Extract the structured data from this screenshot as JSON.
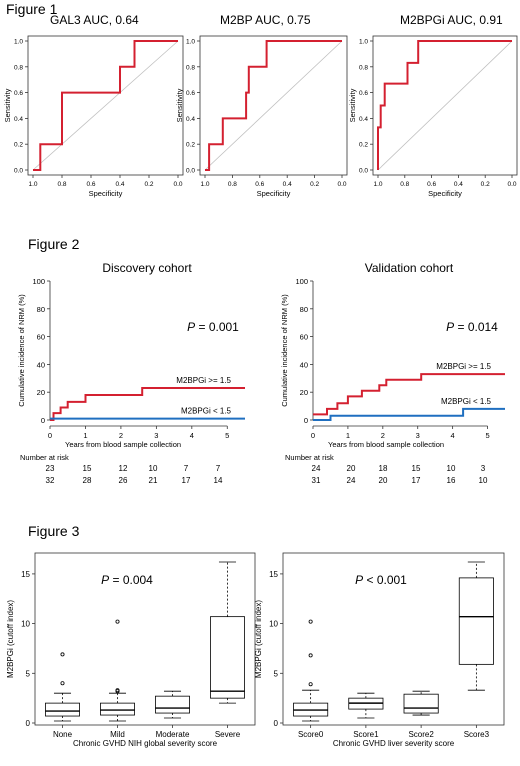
{
  "figures": [
    {
      "label": "Figure 1"
    },
    {
      "label": "Figure 2"
    },
    {
      "label": "Figure 3"
    }
  ],
  "colors": {
    "roc_line": "#d42030",
    "high_group": "#d42030",
    "low_group": "#1f6fc0",
    "reference_line": "#c0c0c0",
    "axis": "#333333"
  },
  "chart_data": [
    {
      "type": "line",
      "title": "GAL3  AUC, 0.64",
      "xlabel": "Specificity",
      "ylabel": "Sensitivity",
      "xlim": [
        1.0,
        0.0
      ],
      "ylim": [
        0.0,
        1.0
      ],
      "x_reversed": true,
      "xticks": [
        "1.0",
        "0.8",
        "0.6",
        "0.4",
        "0.2",
        "0.0"
      ],
      "yticks": [
        "0.0",
        "0.2",
        "0.4",
        "0.6",
        "0.8",
        "1.0"
      ],
      "diagonal_reference": true,
      "series": [
        {
          "x": [
            1.0,
            0.95,
            0.95,
            0.8,
            0.8,
            0.4,
            0.4,
            0.3,
            0.3,
            0.0
          ],
          "y": [
            0.0,
            0.0,
            0.2,
            0.2,
            0.6,
            0.6,
            0.8,
            0.8,
            1.0,
            1.0
          ]
        }
      ]
    },
    {
      "type": "line",
      "title": "M2BP  AUC, 0.75",
      "xlabel": "Specificity",
      "ylabel": "Sensitivity",
      "xlim": [
        1.0,
        0.0
      ],
      "ylim": [
        0.0,
        1.0
      ],
      "x_reversed": true,
      "xticks": [
        "1.0",
        "0.8",
        "0.6",
        "0.4",
        "0.2",
        "0.0"
      ],
      "yticks": [
        "0.0",
        "0.2",
        "0.4",
        "0.6",
        "0.8",
        "1.0"
      ],
      "diagonal_reference": true,
      "series": [
        {
          "x": [
            1.0,
            0.97,
            0.97,
            0.87,
            0.87,
            0.7,
            0.7,
            0.68,
            0.68,
            0.62,
            0.62,
            0.55,
            0.55,
            0.0
          ],
          "y": [
            0.0,
            0.0,
            0.2,
            0.2,
            0.4,
            0.4,
            0.6,
            0.6,
            0.8,
            0.8,
            0.8,
            0.8,
            1.0,
            1.0
          ]
        }
      ]
    },
    {
      "type": "line",
      "title": "M2BPGi  AUC, 0.91",
      "xlabel": "Specificity",
      "ylabel": "Sensitivity",
      "xlim": [
        1.0,
        0.0
      ],
      "ylim": [
        0.0,
        1.0
      ],
      "x_reversed": true,
      "xticks": [
        "1.0",
        "0.8",
        "0.6",
        "0.4",
        "0.2",
        "0.0"
      ],
      "yticks": [
        "0.0",
        "0.2",
        "0.4",
        "0.6",
        "0.8",
        "1.0"
      ],
      "diagonal_reference": true,
      "series": [
        {
          "x": [
            1.0,
            1.0,
            0.98,
            0.98,
            0.95,
            0.95,
            0.92,
            0.92,
            0.85,
            0.85,
            0.78,
            0.78,
            0.7,
            0.7,
            0.0
          ],
          "y": [
            0.0,
            0.33,
            0.33,
            0.5,
            0.5,
            0.67,
            0.67,
            0.67,
            0.67,
            0.67,
            0.67,
            0.83,
            0.83,
            1.0,
            1.0
          ]
        }
      ]
    },
    {
      "type": "line",
      "title": "Discovery cohort",
      "xlabel": "Years from blood sample collection",
      "ylabel": "Cumulative incidence of NRM (%)",
      "xlim": [
        0,
        5.5
      ],
      "ylim": [
        0,
        100
      ],
      "xticks": [
        "0",
        "1",
        "2",
        "3",
        "4",
        "5"
      ],
      "yticks": [
        "0",
        "20",
        "40",
        "60",
        "80",
        "100"
      ],
      "p_value_label": "P",
      "p_value_text": " = 0.001",
      "series": [
        {
          "name": "M2BPGi  >= 1.5",
          "color_key": "high_group",
          "x": [
            0,
            0.1,
            0.1,
            0.3,
            0.3,
            0.5,
            0.5,
            0.8,
            0.8,
            1.0,
            1.0,
            2.6,
            2.6,
            5.5
          ],
          "y": [
            0,
            0,
            5,
            5,
            9,
            9,
            13,
            13,
            13,
            13,
            18,
            18,
            23,
            23
          ]
        },
        {
          "name": "M2BPGi  < 1.5",
          "color_key": "low_group",
          "x": [
            0,
            5.5
          ],
          "y": [
            1,
            1
          ]
        }
      ],
      "risk_table": {
        "title": "Number  at risk",
        "rows": [
          [
            "23",
            "15",
            "12",
            "10",
            "7",
            "7"
          ],
          [
            "32",
            "28",
            "26",
            "21",
            "17",
            "14"
          ]
        ]
      }
    },
    {
      "type": "line",
      "title": "Validation cohort",
      "xlabel": "Years from blood sample collection",
      "ylabel": "Cumulative incidence of NRM (%)",
      "xlim": [
        0,
        5.5
      ],
      "ylim": [
        0,
        100
      ],
      "xticks": [
        "0",
        "1",
        "2",
        "3",
        "4",
        "5"
      ],
      "yticks": [
        "0",
        "20",
        "40",
        "60",
        "80",
        "100"
      ],
      "p_value_label": "P",
      "p_value_text": " = 0.014",
      "series": [
        {
          "name": "M2BPGi  >= 1.5",
          "color_key": "high_group",
          "x": [
            0,
            0.4,
            0.4,
            0.7,
            0.7,
            1.0,
            1.0,
            1.4,
            1.4,
            1.9,
            1.9,
            2.1,
            2.1,
            3.1,
            3.1,
            5.5
          ],
          "y": [
            4,
            4,
            8,
            8,
            12,
            12,
            17,
            17,
            21,
            21,
            25,
            25,
            29,
            29,
            33,
            33
          ]
        },
        {
          "name": "M2BPGi  < 1.5",
          "color_key": "low_group",
          "x": [
            0,
            0.5,
            0.5,
            4.3,
            4.3,
            5.5
          ],
          "y": [
            0,
            0,
            3,
            3,
            8,
            8
          ]
        }
      ],
      "risk_table": {
        "title": "Number  at risk",
        "rows": [
          [
            "24",
            "20",
            "18",
            "15",
            "10",
            "3"
          ],
          [
            "31",
            "24",
            "20",
            "17",
            "16",
            "10"
          ]
        ]
      }
    },
    {
      "type": "box",
      "xlabel": "Chronic GVHD NIH global severity score",
      "ylabel": "M2BPGi (cutoff index)",
      "ylim": [
        0,
        16.5
      ],
      "yticks": [
        "0",
        "5",
        "10",
        "15"
      ],
      "p_value_label": "P",
      "p_value_text": " = 0.004",
      "categories": [
        "None",
        "Mild",
        "Moderate",
        "Severe"
      ],
      "boxes": [
        {
          "min": 0.2,
          "q1": 0.7,
          "median": 1.2,
          "q3": 2.0,
          "max": 3.0,
          "outliers": [
            4.0,
            6.9
          ]
        },
        {
          "min": 0.2,
          "q1": 0.8,
          "median": 1.3,
          "q3": 2.0,
          "max": 3.0,
          "outliers": [
            3.2,
            3.3,
            10.2
          ]
        },
        {
          "min": 0.5,
          "q1": 1.0,
          "median": 1.5,
          "q3": 2.7,
          "max": 3.2,
          "outliers": []
        },
        {
          "min": 2.0,
          "q1": 2.5,
          "median": 3.2,
          "q3": 10.7,
          "max": 16.2,
          "outliers": []
        }
      ]
    },
    {
      "type": "box",
      "xlabel": "Chronic GVHD liver severity score",
      "ylabel": "M2BPGi (cutoff index)",
      "ylim": [
        0,
        16.5
      ],
      "yticks": [
        "0",
        "5",
        "10",
        "15"
      ],
      "p_value_label": "P",
      "p_value_text": " < 0.001",
      "categories": [
        "Score0",
        "Score1",
        "Score2",
        "Score3"
      ],
      "boxes": [
        {
          "min": 0.2,
          "q1": 0.7,
          "median": 1.3,
          "q3": 2.0,
          "max": 3.3,
          "outliers": [
            3.9,
            6.8,
            10.2
          ]
        },
        {
          "min": 0.5,
          "q1": 1.4,
          "median": 2.0,
          "q3": 2.5,
          "max": 3.0,
          "outliers": []
        },
        {
          "min": 0.8,
          "q1": 1.0,
          "median": 1.5,
          "q3": 2.9,
          "max": 3.2,
          "outliers": []
        },
        {
          "min": 3.3,
          "q1": 5.9,
          "median": 10.7,
          "q3": 14.6,
          "max": 16.2,
          "outliers": []
        }
      ]
    }
  ]
}
